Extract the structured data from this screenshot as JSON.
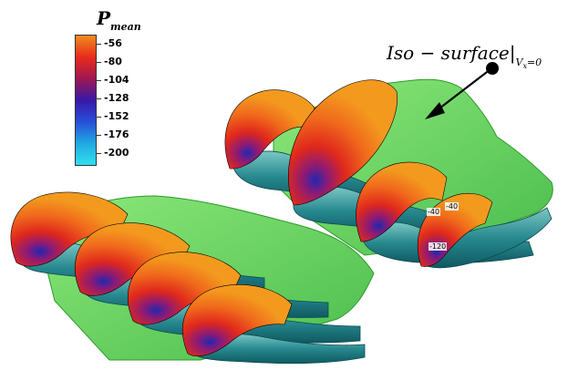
{
  "legend": {
    "title_main": "P",
    "title_sub": "mean",
    "levels": [
      "-56",
      "-80",
      "-104",
      "-128",
      "-152",
      "-176",
      "-200"
    ],
    "colors": [
      "#f08c1c",
      "#e82a1c",
      "#a01850",
      "#3818a8",
      "#2850d8",
      "#20a8e0",
      "#30e0f0"
    ]
  },
  "annotation": {
    "text_main": "Iso − surface",
    "separator": "|",
    "sub_v": "V",
    "sub_x": "x",
    "sub_eq": "=0"
  },
  "contour_labels": [
    "-40",
    "-40",
    "-120"
  ],
  "colors": {
    "iso_surface": "#5cd84a",
    "iso_surface_dark": "#2f9a2a",
    "foil_teal": "#1f7f86",
    "foil_teal_light": "#5cb8b8",
    "pressure_orange": "#f39a1e"
  }
}
